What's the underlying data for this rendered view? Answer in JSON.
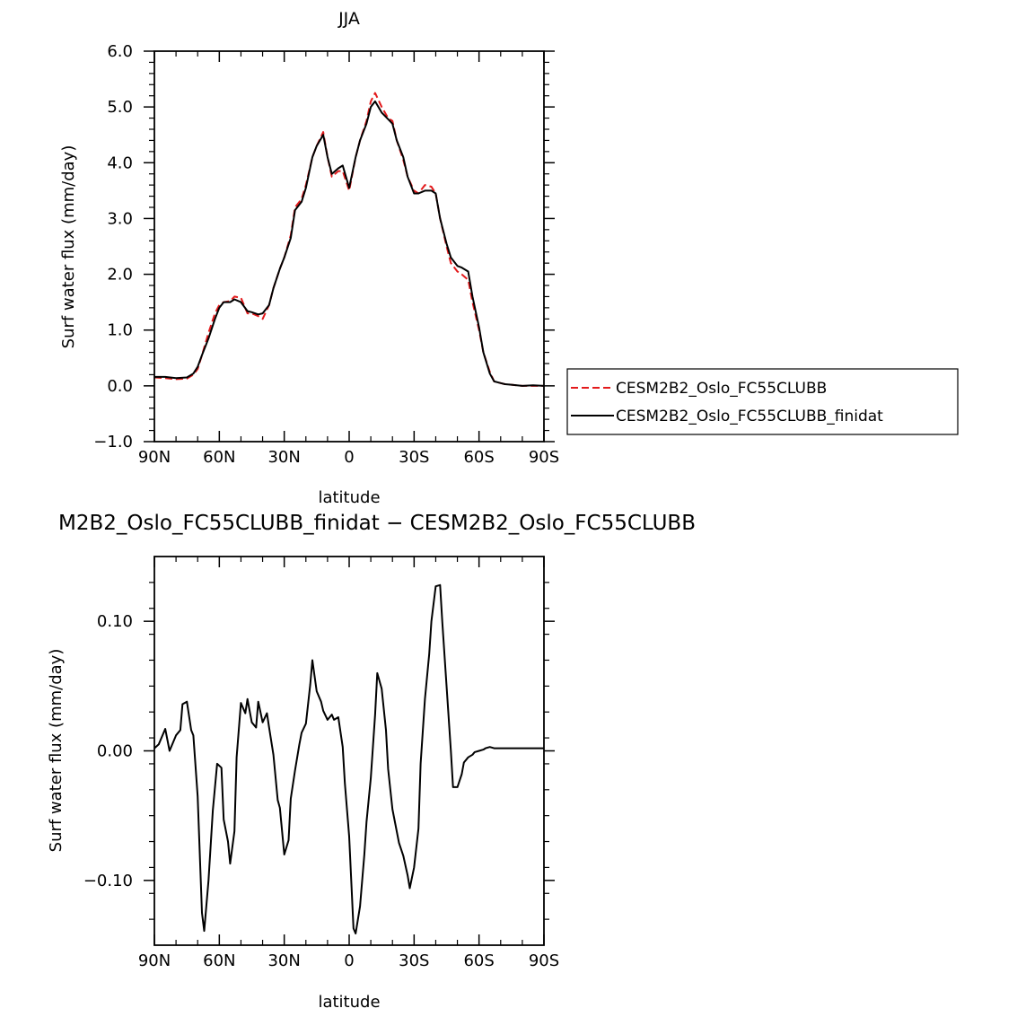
{
  "colors": {
    "series_red": "#e31a1c",
    "series_black": "#000000",
    "axis": "#000000",
    "background": "#ffffff"
  },
  "chart_data": [
    {
      "type": "line",
      "title": "JJA",
      "xlabel": "latitude",
      "ylabel": "Surf water flux (mm/day)",
      "xlim": [
        -90,
        90
      ],
      "ylim": [
        -1.0,
        6.0
      ],
      "x_ticks": [
        {
          "value": -90,
          "label": "90N"
        },
        {
          "value": -60,
          "label": "60N"
        },
        {
          "value": -30,
          "label": "30N"
        },
        {
          "value": 0,
          "label": "0"
        },
        {
          "value": 30,
          "label": "30S"
        },
        {
          "value": 60,
          "label": "60S"
        },
        {
          "value": 90,
          "label": "90S"
        }
      ],
      "y_ticks": [
        {
          "value": -1.0,
          "label": "−1.0"
        },
        {
          "value": 0.0,
          "label": "0.0"
        },
        {
          "value": 1.0,
          "label": "1.0"
        },
        {
          "value": 2.0,
          "label": "2.0"
        },
        {
          "value": 3.0,
          "label": "3.0"
        },
        {
          "value": 4.0,
          "label": "4.0"
        },
        {
          "value": 5.0,
          "label": "5.0"
        },
        {
          "value": 6.0,
          "label": "6.0"
        }
      ],
      "legend_position": "outside-right",
      "series": [
        {
          "name": "CESM2B2_Oslo_FC55CLUBB",
          "color": "#e31a1c",
          "dash": "dashed",
          "x": [
            -90,
            -85,
            -80,
            -75,
            -72,
            -70,
            -68,
            -65,
            -62,
            -60,
            -58,
            -55,
            -53,
            -50,
            -47,
            -45,
            -42,
            -40,
            -37,
            -35,
            -32,
            -30,
            -27,
            -25,
            -22,
            -20,
            -17,
            -15,
            -12,
            -10,
            -8,
            -5,
            -3,
            0,
            3,
            5,
            8,
            10,
            12,
            15,
            18,
            20,
            22,
            25,
            27,
            30,
            32,
            35,
            38,
            40,
            42,
            45,
            47,
            50,
            52,
            55,
            57,
            60,
            62,
            65,
            67,
            70,
            72,
            75,
            80,
            85,
            90
          ],
          "y": [
            0.15,
            0.14,
            0.12,
            0.13,
            0.2,
            0.3,
            0.55,
            0.95,
            1.3,
            1.45,
            1.5,
            1.52,
            1.6,
            1.58,
            1.3,
            1.3,
            1.25,
            1.2,
            1.45,
            1.75,
            2.1,
            2.3,
            2.7,
            3.2,
            3.35,
            3.6,
            4.1,
            4.3,
            4.55,
            4.1,
            3.75,
            3.85,
            3.85,
            3.5,
            4.1,
            4.4,
            4.75,
            5.1,
            5.25,
            5.0,
            4.8,
            4.75,
            4.4,
            4.05,
            3.75,
            3.5,
            3.45,
            3.6,
            3.57,
            3.45,
            3.0,
            2.5,
            2.2,
            2.05,
            2.0,
            1.9,
            1.5,
            1.0,
            0.6,
            0.25,
            0.08,
            0.05,
            0.03,
            0.02,
            0.0,
            0.0,
            0.0
          ]
        },
        {
          "name": "CESM2B2_Oslo_FC55CLUBB_finidat",
          "color": "#000000",
          "dash": "solid",
          "x": [
            -90,
            -85,
            -80,
            -75,
            -72,
            -70,
            -68,
            -65,
            -62,
            -60,
            -58,
            -55,
            -53,
            -50,
            -47,
            -45,
            -42,
            -40,
            -37,
            -35,
            -32,
            -30,
            -27,
            -25,
            -22,
            -20,
            -17,
            -15,
            -12,
            -10,
            -8,
            -5,
            -3,
            0,
            3,
            5,
            8,
            10,
            12,
            15,
            18,
            20,
            22,
            25,
            27,
            30,
            32,
            35,
            38,
            40,
            42,
            45,
            47,
            50,
            52,
            55,
            57,
            60,
            62,
            65,
            67,
            70,
            72,
            75,
            80,
            85,
            90
          ],
          "y": [
            0.16,
            0.16,
            0.14,
            0.15,
            0.22,
            0.34,
            0.55,
            0.85,
            1.2,
            1.4,
            1.5,
            1.5,
            1.55,
            1.5,
            1.34,
            1.32,
            1.28,
            1.3,
            1.45,
            1.75,
            2.1,
            2.3,
            2.65,
            3.15,
            3.3,
            3.55,
            4.1,
            4.3,
            4.5,
            4.1,
            3.8,
            3.9,
            3.95,
            3.55,
            4.1,
            4.4,
            4.7,
            5.0,
            5.1,
            4.9,
            4.78,
            4.7,
            4.4,
            4.1,
            3.75,
            3.45,
            3.45,
            3.5,
            3.5,
            3.45,
            3.0,
            2.55,
            2.3,
            2.15,
            2.12,
            2.05,
            1.6,
            1.05,
            0.6,
            0.22,
            0.08,
            0.05,
            0.03,
            0.02,
            0.0,
            0.01,
            0.0
          ]
        }
      ]
    },
    {
      "type": "line",
      "title": "M2B2_Oslo_FC55CLUBB_finidat − CESM2B2_Oslo_FC55CLUBB",
      "xlabel": "latitude",
      "ylabel": "Surf water flux (mm/day)",
      "xlim": [
        -90,
        90
      ],
      "ylim": [
        -0.15,
        0.15
      ],
      "x_ticks": [
        {
          "value": -90,
          "label": "90N"
        },
        {
          "value": -60,
          "label": "60N"
        },
        {
          "value": -30,
          "label": "30N"
        },
        {
          "value": 0,
          "label": "0"
        },
        {
          "value": 30,
          "label": "30S"
        },
        {
          "value": 60,
          "label": "60S"
        },
        {
          "value": 90,
          "label": "90S"
        }
      ],
      "y_ticks": [
        {
          "value": -0.1,
          "label": "−0.10"
        },
        {
          "value": 0.0,
          "label": "0.00"
        },
        {
          "value": 0.1,
          "label": "0.10"
        }
      ],
      "series": [
        {
          "name": "",
          "color": "#000000",
          "dash": "solid",
          "x": [
            -90,
            -88,
            -85,
            -83,
            -80,
            -78,
            -77,
            -75,
            -73,
            -72,
            -70,
            -68,
            -67,
            -65,
            -63,
            -61,
            -59,
            -58,
            -56,
            -55,
            -53,
            -52,
            -50,
            -48,
            -47,
            -45,
            -43,
            -42,
            -40,
            -38,
            -37,
            -35,
            -33,
            -32,
            -30,
            -28,
            -27,
            -25,
            -23,
            -22,
            -20,
            -18,
            -17,
            -15,
            -13,
            -12,
            -10,
            -8,
            -7,
            -5,
            -3,
            -2,
            0,
            2,
            3,
            5,
            7,
            8,
            10,
            12,
            13,
            15,
            17,
            18,
            20,
            23,
            25,
            27,
            28,
            30,
            32,
            33,
            35,
            37,
            38,
            40,
            42,
            43,
            45,
            47,
            48,
            50,
            52,
            53,
            55,
            57,
            58,
            60,
            62,
            63,
            65,
            67,
            68,
            70,
            72,
            73,
            75,
            78,
            80,
            82,
            85,
            88,
            90
          ],
          "y": [
            0.002,
            0.005,
            0.017,
            0.0,
            0.012,
            0.016,
            0.036,
            0.038,
            0.016,
            0.012,
            -0.035,
            -0.125,
            -0.139,
            -0.1,
            -0.046,
            -0.01,
            -0.013,
            -0.053,
            -0.07,
            -0.087,
            -0.062,
            -0.005,
            0.037,
            0.029,
            0.04,
            0.022,
            0.018,
            0.038,
            0.022,
            0.029,
            0.018,
            -0.003,
            -0.038,
            -0.044,
            -0.08,
            -0.069,
            -0.037,
            -0.015,
            0.005,
            0.014,
            0.021,
            0.051,
            0.07,
            0.046,
            0.038,
            0.031,
            0.024,
            0.028,
            0.024,
            0.026,
            0.003,
            -0.025,
            -0.066,
            -0.137,
            -0.141,
            -0.12,
            -0.08,
            -0.055,
            -0.021,
            0.028,
            0.06,
            0.048,
            0.016,
            -0.014,
            -0.045,
            -0.071,
            -0.081,
            -0.096,
            -0.106,
            -0.09,
            -0.06,
            -0.01,
            0.04,
            0.075,
            0.1,
            0.127,
            0.128,
            0.1,
            0.05,
            0.0,
            -0.028,
            -0.028,
            -0.018,
            -0.009,
            -0.005,
            -0.003,
            -0.001,
            0.0,
            0.001,
            0.002,
            0.003,
            0.002,
            0.002,
            0.002,
            0.002,
            0.002,
            0.002,
            0.002,
            0.002,
            0.002,
            0.002,
            0.002,
            0.002
          ]
        }
      ]
    }
  ]
}
